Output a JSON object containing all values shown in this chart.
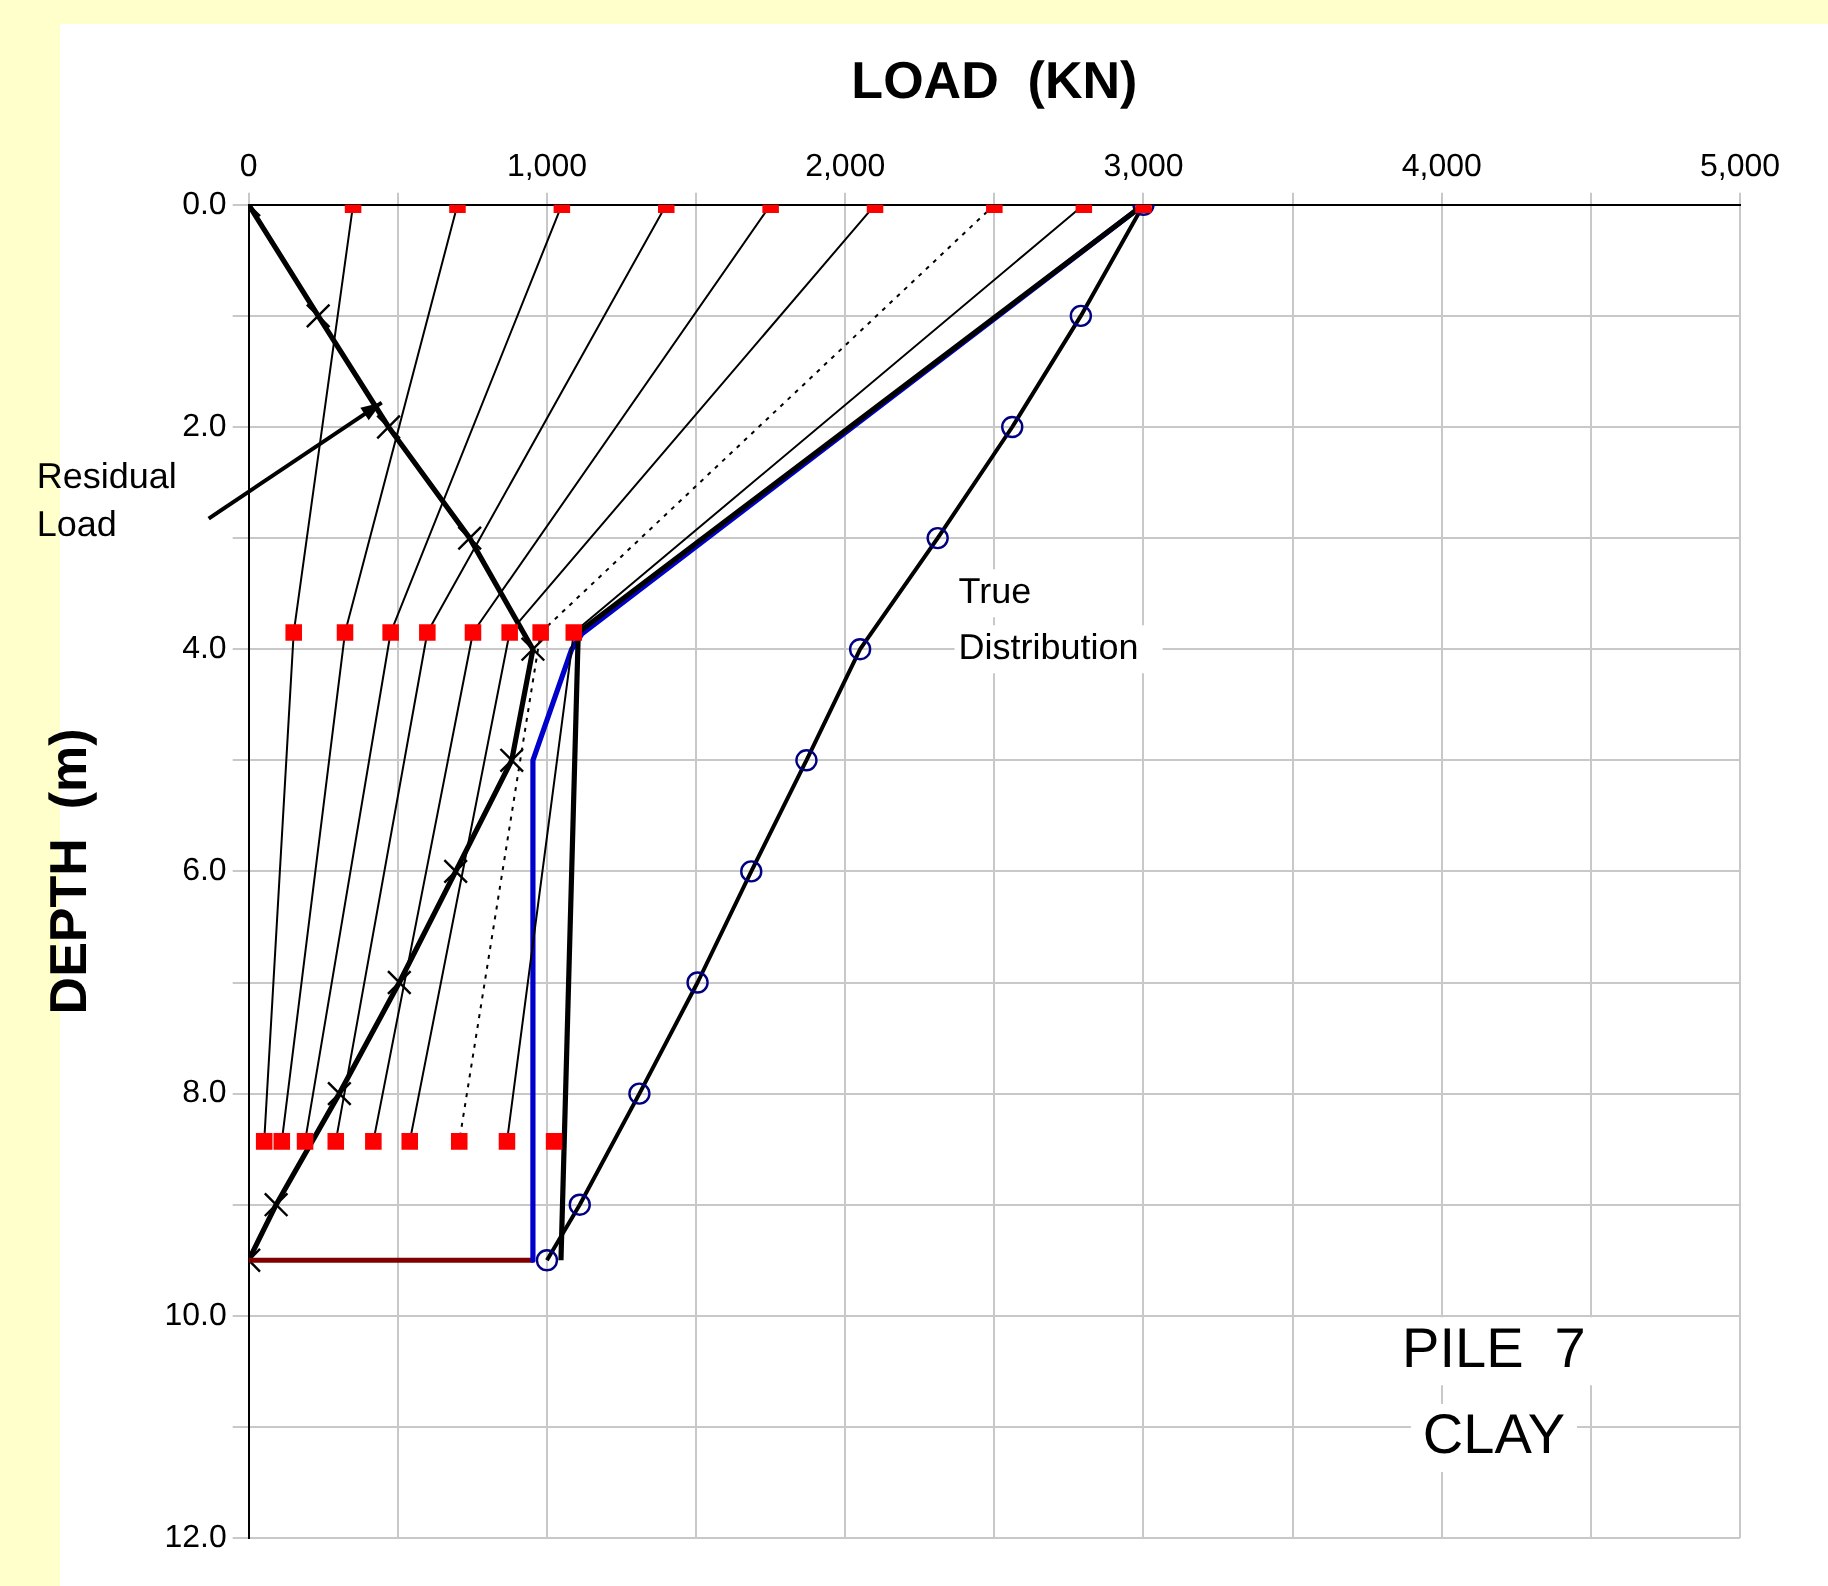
{
  "chart_data": {
    "type": "line",
    "xlabel": "LOAD  (KN)",
    "ylabel": "DEPTH  (m)",
    "xlim": [
      0,
      5000
    ],
    "xticks": [
      0,
      {
        "value": 500,
        "label": null
      },
      {
        "value": 1000,
        "label": "1,000"
      },
      {
        "value": 1500,
        "label": null
      },
      {
        "value": 2000,
        "label": "2,000"
      },
      {
        "value": 2500,
        "label": null
      },
      {
        "value": 3000,
        "label": "3,000"
      },
      {
        "value": 3500,
        "label": null
      },
      {
        "value": 4000,
        "label": "4,000"
      },
      {
        "value": 4500,
        "label": null
      },
      {
        "value": 5000,
        "label": "5,000"
      }
    ],
    "ylim": [
      12,
      0
    ],
    "yticks": [
      {
        "value": 0,
        "label": "0.0"
      },
      {
        "value": 1,
        "label": null
      },
      {
        "value": 2,
        "label": "2.0"
      },
      {
        "value": 3,
        "label": null
      },
      {
        "value": 4,
        "label": "4.0"
      },
      {
        "value": 5,
        "label": null
      },
      {
        "value": 6,
        "label": "6.0"
      },
      {
        "value": 7,
        "label": null
      },
      {
        "value": 8,
        "label": "8.0"
      },
      {
        "value": 9,
        "label": null
      },
      {
        "value": 10,
        "label": "10.0"
      },
      {
        "value": 11,
        "label": null
      },
      {
        "value": 12,
        "label": "12.0"
      }
    ],
    "grid": true,
    "legend": false,
    "series": [
      {
        "color": "#000000",
        "colors": [
          "#ff0000",
          "#ff0000",
          "#ff0000"
        ],
        "marker": "square",
        "x": [
          350,
          151,
          52
        ],
        "values": [
          0,
          3.85,
          8.43
        ]
      },
      {
        "color": "#000000",
        "colors": [
          "#ff0000",
          "#ff0000",
          "#ff0000"
        ],
        "marker": "square",
        "x": [
          700,
          323,
          111
        ],
        "values": [
          0,
          3.85,
          8.43
        ]
      },
      {
        "color": "#000000",
        "colors": [
          "#ff0000",
          "#ff0000",
          "#ff0000"
        ],
        "marker": "square",
        "x": [
          1050,
          476,
          189
        ],
        "values": [
          0,
          3.85,
          8.43
        ]
      },
      {
        "color": "#000000",
        "colors": [
          "#ff0000",
          "#ff0000",
          "#ff0000"
        ],
        "marker": "square",
        "x": [
          1400,
          599,
          292
        ],
        "values": [
          0,
          3.85,
          8.43
        ]
      },
      {
        "color": "#000000",
        "colors": [
          "#ff0000",
          "#ff0000",
          "#ff0000"
        ],
        "marker": "square",
        "x": [
          1750,
          752,
          418
        ],
        "values": [
          0,
          3.85,
          8.43
        ]
      },
      {
        "color": "#000000",
        "colors": [
          "#ff0000",
          "#ff0000",
          "#ff0000"
        ],
        "marker": "square",
        "x": [
          2100,
          875,
          540
        ],
        "values": [
          0,
          3.85,
          8.43
        ]
      },
      {
        "color": "#000000",
        "colors": [
          "#ff0000",
          "#ff0000",
          "#ff0000"
        ],
        "marker": "square",
        "line_style": "dotted",
        "x": [
          2500,
          979,
          706
        ],
        "values": [
          0,
          3.85,
          8.43
        ]
      },
      {
        "color": "#000000",
        "colors": [
          "#ff0000",
          "#ff0000",
          "#ff0000"
        ],
        "marker": "square",
        "x": [
          2800,
          1090,
          866
        ],
        "values": [
          0,
          3.85,
          8.43
        ]
      },
      {
        "type": "scatter",
        "color": "#ff0000",
        "marker": "square",
        "x": [
          3000,
          null,
          1024
        ],
        "values": [
          0,
          null,
          8.43
        ]
      },
      {
        "color": "#000000",
        "marker": "none",
        "x": [
          3000,
          1105,
          1047
        ],
        "values": [
          0,
          3.85,
          9.5
        ]
      },
      {
        "color": "#0000cc",
        "marker": "none",
        "x": [
          3000,
          1118,
          1083,
          953,
          953
        ],
        "values": [
          0,
          3.86,
          4,
          5,
          9.5
        ]
      },
      {
        "color": "#800000",
        "marker": "none",
        "x": [
          0,
          953
        ],
        "values": [
          9.5,
          9.5
        ]
      },
      {
        "color": "#000000",
        "marker": "cross",
        "x": [
          0,
          233,
          469,
          741,
          953,
          882,
          694,
          505,
          304,
          92,
          0
        ],
        "values": [
          0,
          1,
          2,
          3,
          4,
          5,
          6,
          7,
          8,
          9,
          9.5
        ]
      },
      {
        "color": "#000000",
        "colors": [
          "#000080",
          "#000080",
          "#000080",
          "#000080",
          "#000080",
          "#000080",
          "#000080",
          "#000080",
          "#000080",
          "#000080",
          "#000080"
        ],
        "marker": "circle",
        "x": [
          3000,
          2790,
          2560,
          2310,
          2050,
          1870,
          1685,
          1505,
          1310,
          1110,
          1000
        ],
        "values": [
          0,
          1,
          2,
          3,
          4,
          5,
          6,
          7,
          8,
          9,
          9.5
        ]
      }
    ],
    "annotations": [
      {
        "text": "Residual Load",
        "x": 446,
        "y": 1.78
      },
      "True Distribution",
      "PILE  7",
      "CLAY"
    ]
  }
}
